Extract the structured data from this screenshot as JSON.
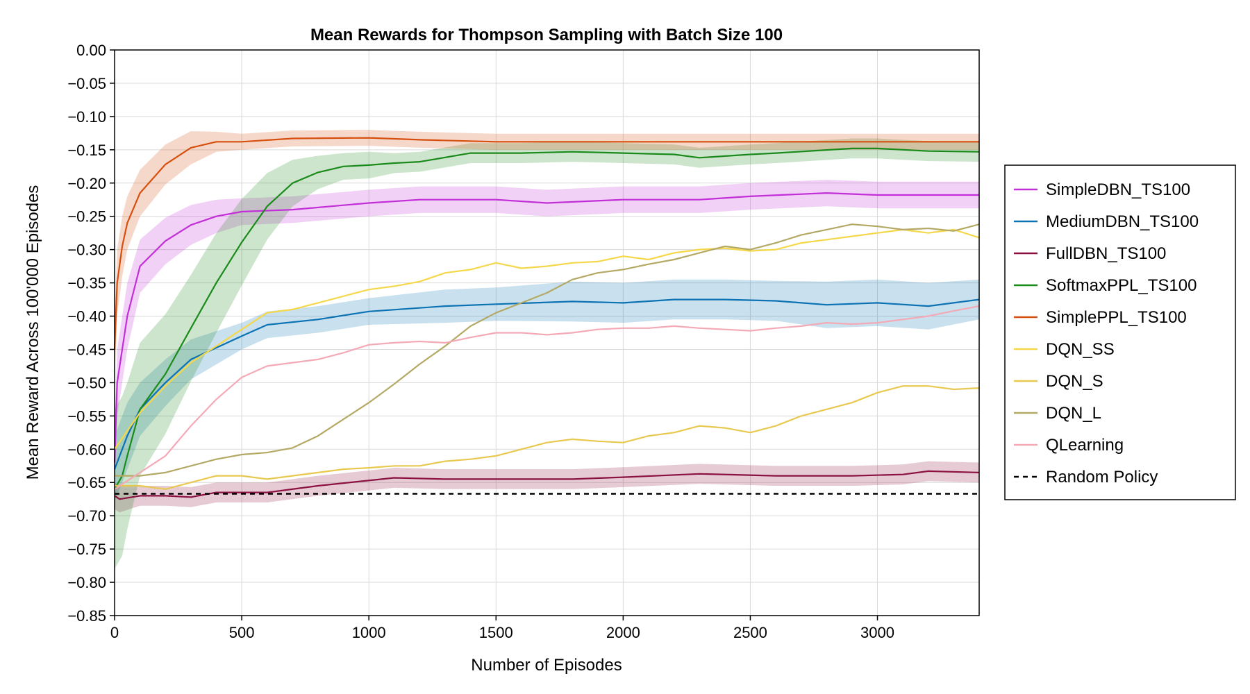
{
  "chart_data": {
    "type": "line",
    "title": "Mean Rewards for Thompson Sampling with Batch Size 100",
    "xlabel": "Number of Episodes",
    "ylabel": "Mean Reward Across 100'000 Episodes",
    "xlim": [
      0,
      3400
    ],
    "ylim": [
      -0.85,
      0.0
    ],
    "x_ticks": [
      0,
      500,
      1000,
      1500,
      2000,
      2500,
      3000
    ],
    "x_tick_labels": [
      "0",
      "500",
      "1000",
      "1500",
      "2000",
      "2500",
      "3000"
    ],
    "y_ticks": [
      0.0,
      -0.05,
      -0.1,
      -0.15,
      -0.2,
      -0.25,
      -0.3,
      -0.35,
      -0.4,
      -0.45,
      -0.5,
      -0.55,
      -0.6,
      -0.65,
      -0.7,
      -0.75,
      -0.8,
      -0.85
    ],
    "y_tick_labels": [
      "0.00",
      "−0.05",
      "−0.10",
      "−0.15",
      "−0.20",
      "−0.25",
      "−0.30",
      "−0.35",
      "−0.40",
      "−0.45",
      "−0.50",
      "−0.55",
      "−0.60",
      "−0.65",
      "−0.70",
      "−0.75",
      "−0.80",
      "−0.85"
    ],
    "grid": true,
    "legend_position": "right",
    "series": [
      {
        "name": "SimpleDBN_TS100",
        "color": "#c22ed8",
        "x": [
          0,
          10,
          50,
          100,
          200,
          300,
          400,
          500,
          700,
          1000,
          1200,
          1500,
          1700,
          2000,
          2300,
          2500,
          2800,
          3000,
          3400
        ],
        "y": [
          -0.62,
          -0.5,
          -0.4,
          -0.325,
          -0.287,
          -0.263,
          -0.25,
          -0.243,
          -0.24,
          -0.23,
          -0.225,
          -0.225,
          -0.23,
          -0.225,
          -0.225,
          -0.22,
          -0.215,
          -0.218,
          -0.218
        ],
        "band_half_width": [
          0.05,
          0.05,
          0.05,
          0.04,
          0.035,
          0.03,
          0.025,
          0.02,
          0.02,
          0.02,
          0.02,
          0.02,
          0.02,
          0.02,
          0.02,
          0.02,
          0.02,
          0.02,
          0.02
        ]
      },
      {
        "name": "MediumDBN_TS100",
        "color": "#0b72b3",
        "x": [
          0,
          50,
          100,
          200,
          300,
          500,
          600,
          800,
          1000,
          1300,
          1500,
          1800,
          2000,
          2200,
          2400,
          2600,
          2800,
          3000,
          3200,
          3400
        ],
        "y": [
          -0.63,
          -0.58,
          -0.54,
          -0.5,
          -0.465,
          -0.43,
          -0.413,
          -0.405,
          -0.393,
          -0.385,
          -0.382,
          -0.378,
          -0.38,
          -0.375,
          -0.375,
          -0.377,
          -0.383,
          -0.38,
          -0.385,
          -0.375
        ],
        "band_half_width": [
          0.05,
          0.05,
          0.04,
          0.035,
          0.03,
          0.02,
          0.02,
          0.02,
          0.02,
          0.025,
          0.025,
          0.03,
          0.03,
          0.03,
          0.03,
          0.03,
          0.035,
          0.035,
          0.035,
          0.03
        ]
      },
      {
        "name": "FullDBN_TS100",
        "color": "#8b1140",
        "x": [
          0,
          20,
          100,
          200,
          300,
          400,
          600,
          800,
          1100,
          1300,
          1500,
          1800,
          2000,
          2300,
          2600,
          2900,
          3100,
          3200,
          3400
        ],
        "y": [
          -0.67,
          -0.675,
          -0.67,
          -0.67,
          -0.672,
          -0.665,
          -0.665,
          -0.655,
          -0.643,
          -0.645,
          -0.645,
          -0.645,
          -0.642,
          -0.637,
          -0.64,
          -0.64,
          -0.638,
          -0.633,
          -0.635
        ],
        "band_half_width": [
          0.02,
          0.02,
          0.015,
          0.015,
          0.015,
          0.015,
          0.015,
          0.015,
          0.015,
          0.015,
          0.015,
          0.015,
          0.015,
          0.015,
          0.015,
          0.015,
          0.015,
          0.015,
          0.015
        ]
      },
      {
        "name": "SoftmaxPPL_TS100",
        "color": "#1a8a1a",
        "x": [
          0,
          30,
          50,
          100,
          200,
          300,
          400,
          500,
          600,
          700,
          800,
          900,
          1000,
          1100,
          1200,
          1400,
          1600,
          1800,
          2000,
          2200,
          2300,
          2500,
          2600,
          2900,
          3000,
          3200,
          3400
        ],
        "y": [
          -0.66,
          -0.64,
          -0.61,
          -0.54,
          -0.487,
          -0.418,
          -0.35,
          -0.289,
          -0.235,
          -0.2,
          -0.184,
          -0.175,
          -0.173,
          -0.17,
          -0.168,
          -0.155,
          -0.155,
          -0.153,
          -0.155,
          -0.157,
          -0.162,
          -0.157,
          -0.155,
          -0.148,
          -0.148,
          -0.152,
          -0.153
        ],
        "band_half_width": [
          0.12,
          0.12,
          0.11,
          0.1,
          0.09,
          0.08,
          0.075,
          0.065,
          0.05,
          0.035,
          0.025,
          0.02,
          0.02,
          0.015,
          0.015,
          0.015,
          0.015,
          0.015,
          0.015,
          0.015,
          0.015,
          0.015,
          0.015,
          0.015,
          0.015,
          0.015,
          0.015
        ]
      },
      {
        "name": "SimplePPL_TS100",
        "color": "#d64f0f",
        "x": [
          0,
          10,
          30,
          50,
          100,
          200,
          300,
          400,
          500,
          700,
          1000,
          1200,
          1500,
          2000,
          2500,
          3000,
          3400
        ],
        "y": [
          -0.45,
          -0.35,
          -0.295,
          -0.26,
          -0.215,
          -0.172,
          -0.147,
          -0.138,
          -0.138,
          -0.133,
          -0.132,
          -0.135,
          -0.138,
          -0.138,
          -0.138,
          -0.138,
          -0.138
        ],
        "band_half_width": [
          0.05,
          0.05,
          0.045,
          0.04,
          0.035,
          0.03,
          0.025,
          0.015,
          0.012,
          0.012,
          0.012,
          0.012,
          0.012,
          0.012,
          0.012,
          0.012,
          0.012
        ]
      },
      {
        "name": "DQN_SS",
        "color": "#f5d84a",
        "x": [
          0,
          100,
          200,
          300,
          400,
          500,
          600,
          700,
          800,
          900,
          1000,
          1100,
          1200,
          1300,
          1400,
          1500,
          1600,
          1700,
          1800,
          1900,
          2000,
          2100,
          2200,
          2300,
          2400,
          2500,
          2600,
          2700,
          2800,
          2900,
          3000,
          3100,
          3200,
          3300,
          3400
        ],
        "y": [
          -0.6,
          -0.545,
          -0.505,
          -0.47,
          -0.445,
          -0.42,
          -0.395,
          -0.39,
          -0.38,
          -0.37,
          -0.36,
          -0.355,
          -0.348,
          -0.335,
          -0.33,
          -0.32,
          -0.328,
          -0.325,
          -0.32,
          -0.318,
          -0.31,
          -0.315,
          -0.305,
          -0.3,
          -0.298,
          -0.302,
          -0.3,
          -0.29,
          -0.285,
          -0.28,
          -0.275,
          -0.27,
          -0.275,
          -0.27,
          -0.282
        ]
      },
      {
        "name": "DQN_S",
        "color": "#e8c84f",
        "x": [
          0,
          100,
          200,
          300,
          400,
          500,
          600,
          700,
          800,
          900,
          1000,
          1100,
          1200,
          1300,
          1400,
          1500,
          1600,
          1700,
          1800,
          1900,
          2000,
          2100,
          2200,
          2300,
          2400,
          2500,
          2600,
          2700,
          2800,
          2900,
          3000,
          3100,
          3200,
          3300,
          3400
        ],
        "y": [
          -0.655,
          -0.655,
          -0.66,
          -0.65,
          -0.64,
          -0.64,
          -0.645,
          -0.64,
          -0.635,
          -0.63,
          -0.628,
          -0.625,
          -0.625,
          -0.618,
          -0.615,
          -0.61,
          -0.6,
          -0.59,
          -0.585,
          -0.588,
          -0.59,
          -0.58,
          -0.575,
          -0.565,
          -0.568,
          -0.575,
          -0.565,
          -0.55,
          -0.54,
          -0.53,
          -0.515,
          -0.505,
          -0.505,
          -0.51,
          -0.508
        ]
      },
      {
        "name": "DQN_L",
        "color": "#b4a964",
        "x": [
          0,
          100,
          200,
          300,
          400,
          500,
          600,
          700,
          800,
          900,
          1000,
          1100,
          1200,
          1300,
          1400,
          1500,
          1600,
          1700,
          1800,
          1900,
          2000,
          2100,
          2200,
          2300,
          2400,
          2500,
          2600,
          2700,
          2800,
          2900,
          3000,
          3100,
          3200,
          3300,
          3400
        ],
        "y": [
          -0.64,
          -0.64,
          -0.635,
          -0.625,
          -0.615,
          -0.608,
          -0.605,
          -0.598,
          -0.58,
          -0.555,
          -0.53,
          -0.502,
          -0.472,
          -0.445,
          -0.415,
          -0.395,
          -0.38,
          -0.365,
          -0.345,
          -0.335,
          -0.33,
          -0.322,
          -0.315,
          -0.305,
          -0.295,
          -0.3,
          -0.29,
          -0.278,
          -0.27,
          -0.262,
          -0.265,
          -0.27,
          -0.268,
          -0.272,
          -0.262
        ]
      },
      {
        "name": "QLearning",
        "color": "#f4a9b6",
        "x": [
          0,
          100,
          200,
          300,
          400,
          500,
          600,
          700,
          800,
          900,
          1000,
          1100,
          1200,
          1300,
          1400,
          1500,
          1600,
          1700,
          1800,
          1900,
          2000,
          2100,
          2200,
          2300,
          2400,
          2500,
          2600,
          2700,
          2800,
          2900,
          3000,
          3100,
          3200,
          3300,
          3400
        ],
        "y": [
          -0.66,
          -0.635,
          -0.61,
          -0.565,
          -0.525,
          -0.492,
          -0.475,
          -0.47,
          -0.465,
          -0.455,
          -0.443,
          -0.44,
          -0.438,
          -0.44,
          -0.432,
          -0.425,
          -0.425,
          -0.428,
          -0.425,
          -0.42,
          -0.418,
          -0.418,
          -0.415,
          -0.418,
          -0.42,
          -0.422,
          -0.418,
          -0.415,
          -0.41,
          -0.412,
          -0.41,
          -0.405,
          -0.4,
          -0.392,
          -0.385
        ]
      },
      {
        "name": "Random Policy",
        "color": "#000000",
        "dashed": true,
        "x": [
          0,
          3400
        ],
        "y": [
          -0.667,
          -0.667
        ]
      }
    ]
  }
}
